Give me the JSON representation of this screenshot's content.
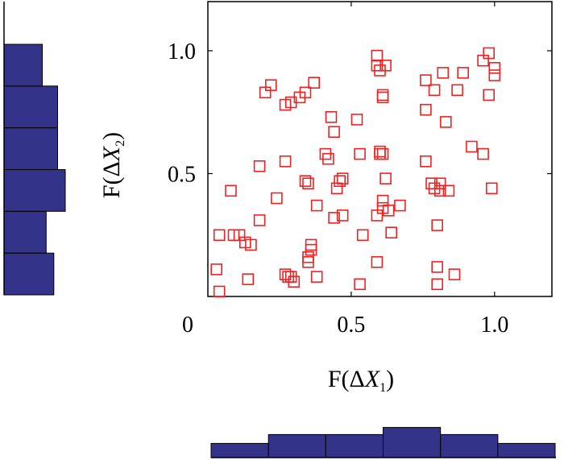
{
  "chart_data": {
    "type": "scatter",
    "title": "",
    "xlabel": "F(ΔX1)",
    "ylabel": "F(ΔX2)",
    "xlabel_parts": {
      "pre": "F(Δ",
      "var": "X",
      "sub": "1",
      "post": ")"
    },
    "ylabel_parts": {
      "pre": "F(Δ",
      "var": "X",
      "sub": "2",
      "post": ")"
    },
    "xlim": [
      0.0,
      1.2
    ],
    "ylim": [
      0.0,
      1.2
    ],
    "x_ticks": [
      0.5,
      1.0
    ],
    "y_ticks": [
      0.5,
      1.0
    ],
    "x_tick_labels": [
      "0.5",
      "1.0"
    ],
    "y_tick_labels": [
      "0.5",
      "1.0"
    ],
    "origin_label": "0",
    "grid": false,
    "marker": "open-square",
    "marker_color": "#ee2222",
    "points": [
      [
        0.59,
        0.98
      ],
      [
        0.59,
        0.94
      ],
      [
        0.62,
        0.94
      ],
      [
        0.6,
        0.92
      ],
      [
        0.98,
        0.99
      ],
      [
        0.96,
        0.96
      ],
      [
        1.0,
        0.93
      ],
      [
        1.0,
        0.9
      ],
      [
        0.89,
        0.91
      ],
      [
        0.76,
        0.88
      ],
      [
        0.82,
        0.91
      ],
      [
        0.79,
        0.84
      ],
      [
        0.87,
        0.84
      ],
      [
        0.98,
        0.82
      ],
      [
        0.76,
        0.76
      ],
      [
        0.83,
        0.71
      ],
      [
        0.2,
        0.83
      ],
      [
        0.22,
        0.86
      ],
      [
        0.27,
        0.78
      ],
      [
        0.29,
        0.79
      ],
      [
        0.32,
        0.81
      ],
      [
        0.34,
        0.83
      ],
      [
        0.37,
        0.87
      ],
      [
        0.61,
        0.82
      ],
      [
        0.61,
        0.81
      ],
      [
        0.43,
        0.73
      ],
      [
        0.44,
        0.67
      ],
      [
        0.52,
        0.72
      ],
      [
        0.92,
        0.61
      ],
      [
        0.96,
        0.58
      ],
      [
        0.41,
        0.58
      ],
      [
        0.42,
        0.56
      ],
      [
        0.53,
        0.58
      ],
      [
        0.6,
        0.59
      ],
      [
        0.61,
        0.58
      ],
      [
        0.6,
        0.58
      ],
      [
        0.76,
        0.55
      ],
      [
        0.18,
        0.53
      ],
      [
        0.27,
        0.55
      ],
      [
        0.34,
        0.47
      ],
      [
        0.35,
        0.46
      ],
      [
        0.47,
        0.48
      ],
      [
        0.45,
        0.44
      ],
      [
        0.46,
        0.47
      ],
      [
        0.08,
        0.43
      ],
      [
        0.24,
        0.4
      ],
      [
        0.62,
        0.48
      ],
      [
        0.61,
        0.39
      ],
      [
        0.67,
        0.37
      ],
      [
        0.63,
        0.35
      ],
      [
        0.78,
        0.46
      ],
      [
        0.79,
        0.44
      ],
      [
        0.81,
        0.46
      ],
      [
        0.81,
        0.43
      ],
      [
        0.84,
        0.43
      ],
      [
        0.99,
        0.44
      ],
      [
        0.38,
        0.37
      ],
      [
        0.44,
        0.32
      ],
      [
        0.47,
        0.33
      ],
      [
        0.59,
        0.33
      ],
      [
        0.61,
        0.36
      ],
      [
        0.64,
        0.26
      ],
      [
        0.18,
        0.31
      ],
      [
        0.04,
        0.25
      ],
      [
        0.09,
        0.25
      ],
      [
        0.11,
        0.25
      ],
      [
        0.13,
        0.22
      ],
      [
        0.15,
        0.21
      ],
      [
        0.36,
        0.21
      ],
      [
        0.36,
        0.19
      ],
      [
        0.35,
        0.16
      ],
      [
        0.35,
        0.14
      ],
      [
        0.54,
        0.25
      ],
      [
        0.8,
        0.29
      ],
      [
        0.03,
        0.11
      ],
      [
        0.59,
        0.14
      ],
      [
        0.8,
        0.12
      ],
      [
        0.27,
        0.09
      ],
      [
        0.28,
        0.08
      ],
      [
        0.29,
        0.08
      ],
      [
        0.3,
        0.06
      ],
      [
        0.38,
        0.08
      ],
      [
        0.14,
        0.07
      ],
      [
        0.53,
        0.05
      ],
      [
        0.8,
        0.05
      ],
      [
        0.86,
        0.09
      ],
      [
        0.04,
        0.02
      ]
    ],
    "marginal_x_histogram": {
      "orientation": "bottom",
      "bins": [
        [
          0.0,
          0.2
        ],
        [
          0.2,
          0.4
        ],
        [
          0.4,
          0.6
        ],
        [
          0.6,
          0.8
        ],
        [
          0.8,
          1.0
        ],
        [
          1.0,
          1.2
        ]
      ],
      "counts": [
        8,
        13,
        13,
        17,
        13,
        8
      ],
      "color": "#33338a"
    },
    "marginal_y_histogram": {
      "orientation": "left",
      "bins": [
        [
          0.0,
          0.2
        ],
        [
          0.2,
          0.4
        ],
        [
          0.4,
          0.6
        ],
        [
          0.6,
          0.8
        ],
        [
          0.8,
          1.0
        ],
        [
          1.0,
          1.2
        ]
      ],
      "counts": [
        13,
        11,
        16,
        14,
        14,
        10
      ],
      "color": "#33338a"
    }
  }
}
